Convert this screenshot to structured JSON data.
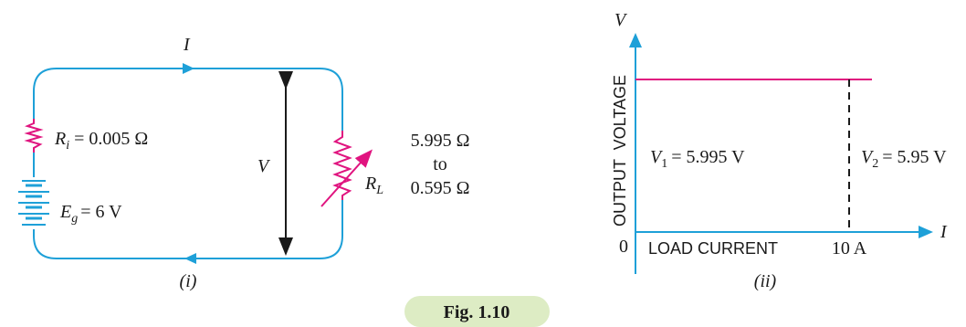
{
  "colors": {
    "wire": "#1ea0d8",
    "accent": "#e0147f",
    "ink": "#1a1a1a",
    "caption_bg": "#ddecc4"
  },
  "circuit": {
    "current_label": "I",
    "ri_sym": "R",
    "ri_sub": "i",
    "ri_value": "= 0.005 Ω",
    "eg_sym": "E",
    "eg_sub": "g",
    "eg_value": "= 6 V",
    "v_label": "V",
    "rl_sym": "R",
    "rl_sub": "L",
    "range_from": "5.995 Ω",
    "range_to_word": "to",
    "range_to": "0.595 Ω",
    "panel_label": "(i)"
  },
  "graph": {
    "y_axis_label": "V",
    "x_axis_label": "I",
    "y_title": "OUTPUT  VOLTAGE",
    "x_title": "LOAD CURRENT",
    "origin": "0",
    "x_tick": "10 A",
    "v1_sym": "V",
    "v1_sub": "1",
    "v1_value": "= 5.995 V",
    "v2_sym": "V",
    "v2_sub": "2",
    "v2_value": "= 5.95 V",
    "panel_label": "(ii)"
  },
  "caption": "Fig. 1.10"
}
